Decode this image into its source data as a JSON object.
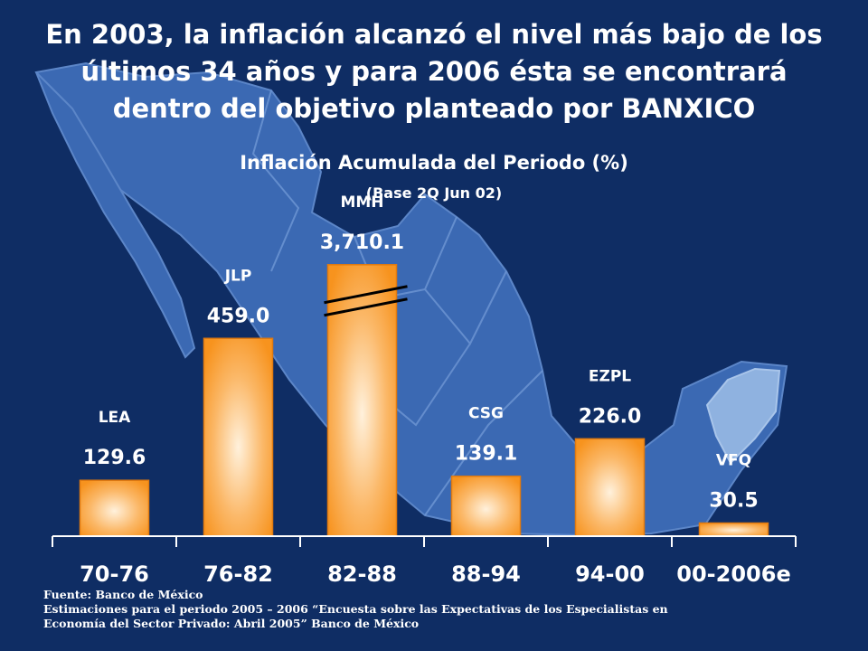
{
  "headline": [
    "En 2003, la inflación alcanzó el nivel más bajo de los",
    "últimos 34 años y para 2006 ésta se encontrará",
    "dentro del objetivo planteado por BANXICO"
  ],
  "colors": {
    "background": "#0f2d64",
    "map": "#3b69b3",
    "bar": "#f7931e",
    "bar_highlight": "#fff1dc"
  },
  "chart_data": {
    "type": "bar",
    "title": "Inflación Acumulada del Periodo (%)",
    "subtitle": "(Base 2Q Jun 02)",
    "categories": [
      "70-76",
      "76-82",
      "82-88",
      "88-94",
      "94-00",
      "00-2006e"
    ],
    "values": [
      129.6,
      459.0,
      3710.1,
      139.1,
      226.0,
      30.5
    ],
    "value_labels": [
      "129.6",
      "459.0",
      "3,710.1",
      "139.1",
      "226.0",
      "30.5"
    ],
    "bar_labels": [
      "LEA",
      "JLP",
      "MMH",
      "CSG",
      "EZPL",
      "VFQ"
    ],
    "axis_break": {
      "category": "82-88",
      "display_cap": 630
    },
    "ylim": [
      0,
      640
    ],
    "grid": false,
    "legend": "none",
    "xlabel": "",
    "ylabel": ""
  },
  "footer": {
    "source": "Fuente: Banco de México",
    "note_line1": "Estimaciones para el periodo 2005 – 2006 “Encuesta sobre las Expectativas de los Especialistas en",
    "note_line2": "Economía del Sector Privado: Abril 2005” Banco de México"
  }
}
